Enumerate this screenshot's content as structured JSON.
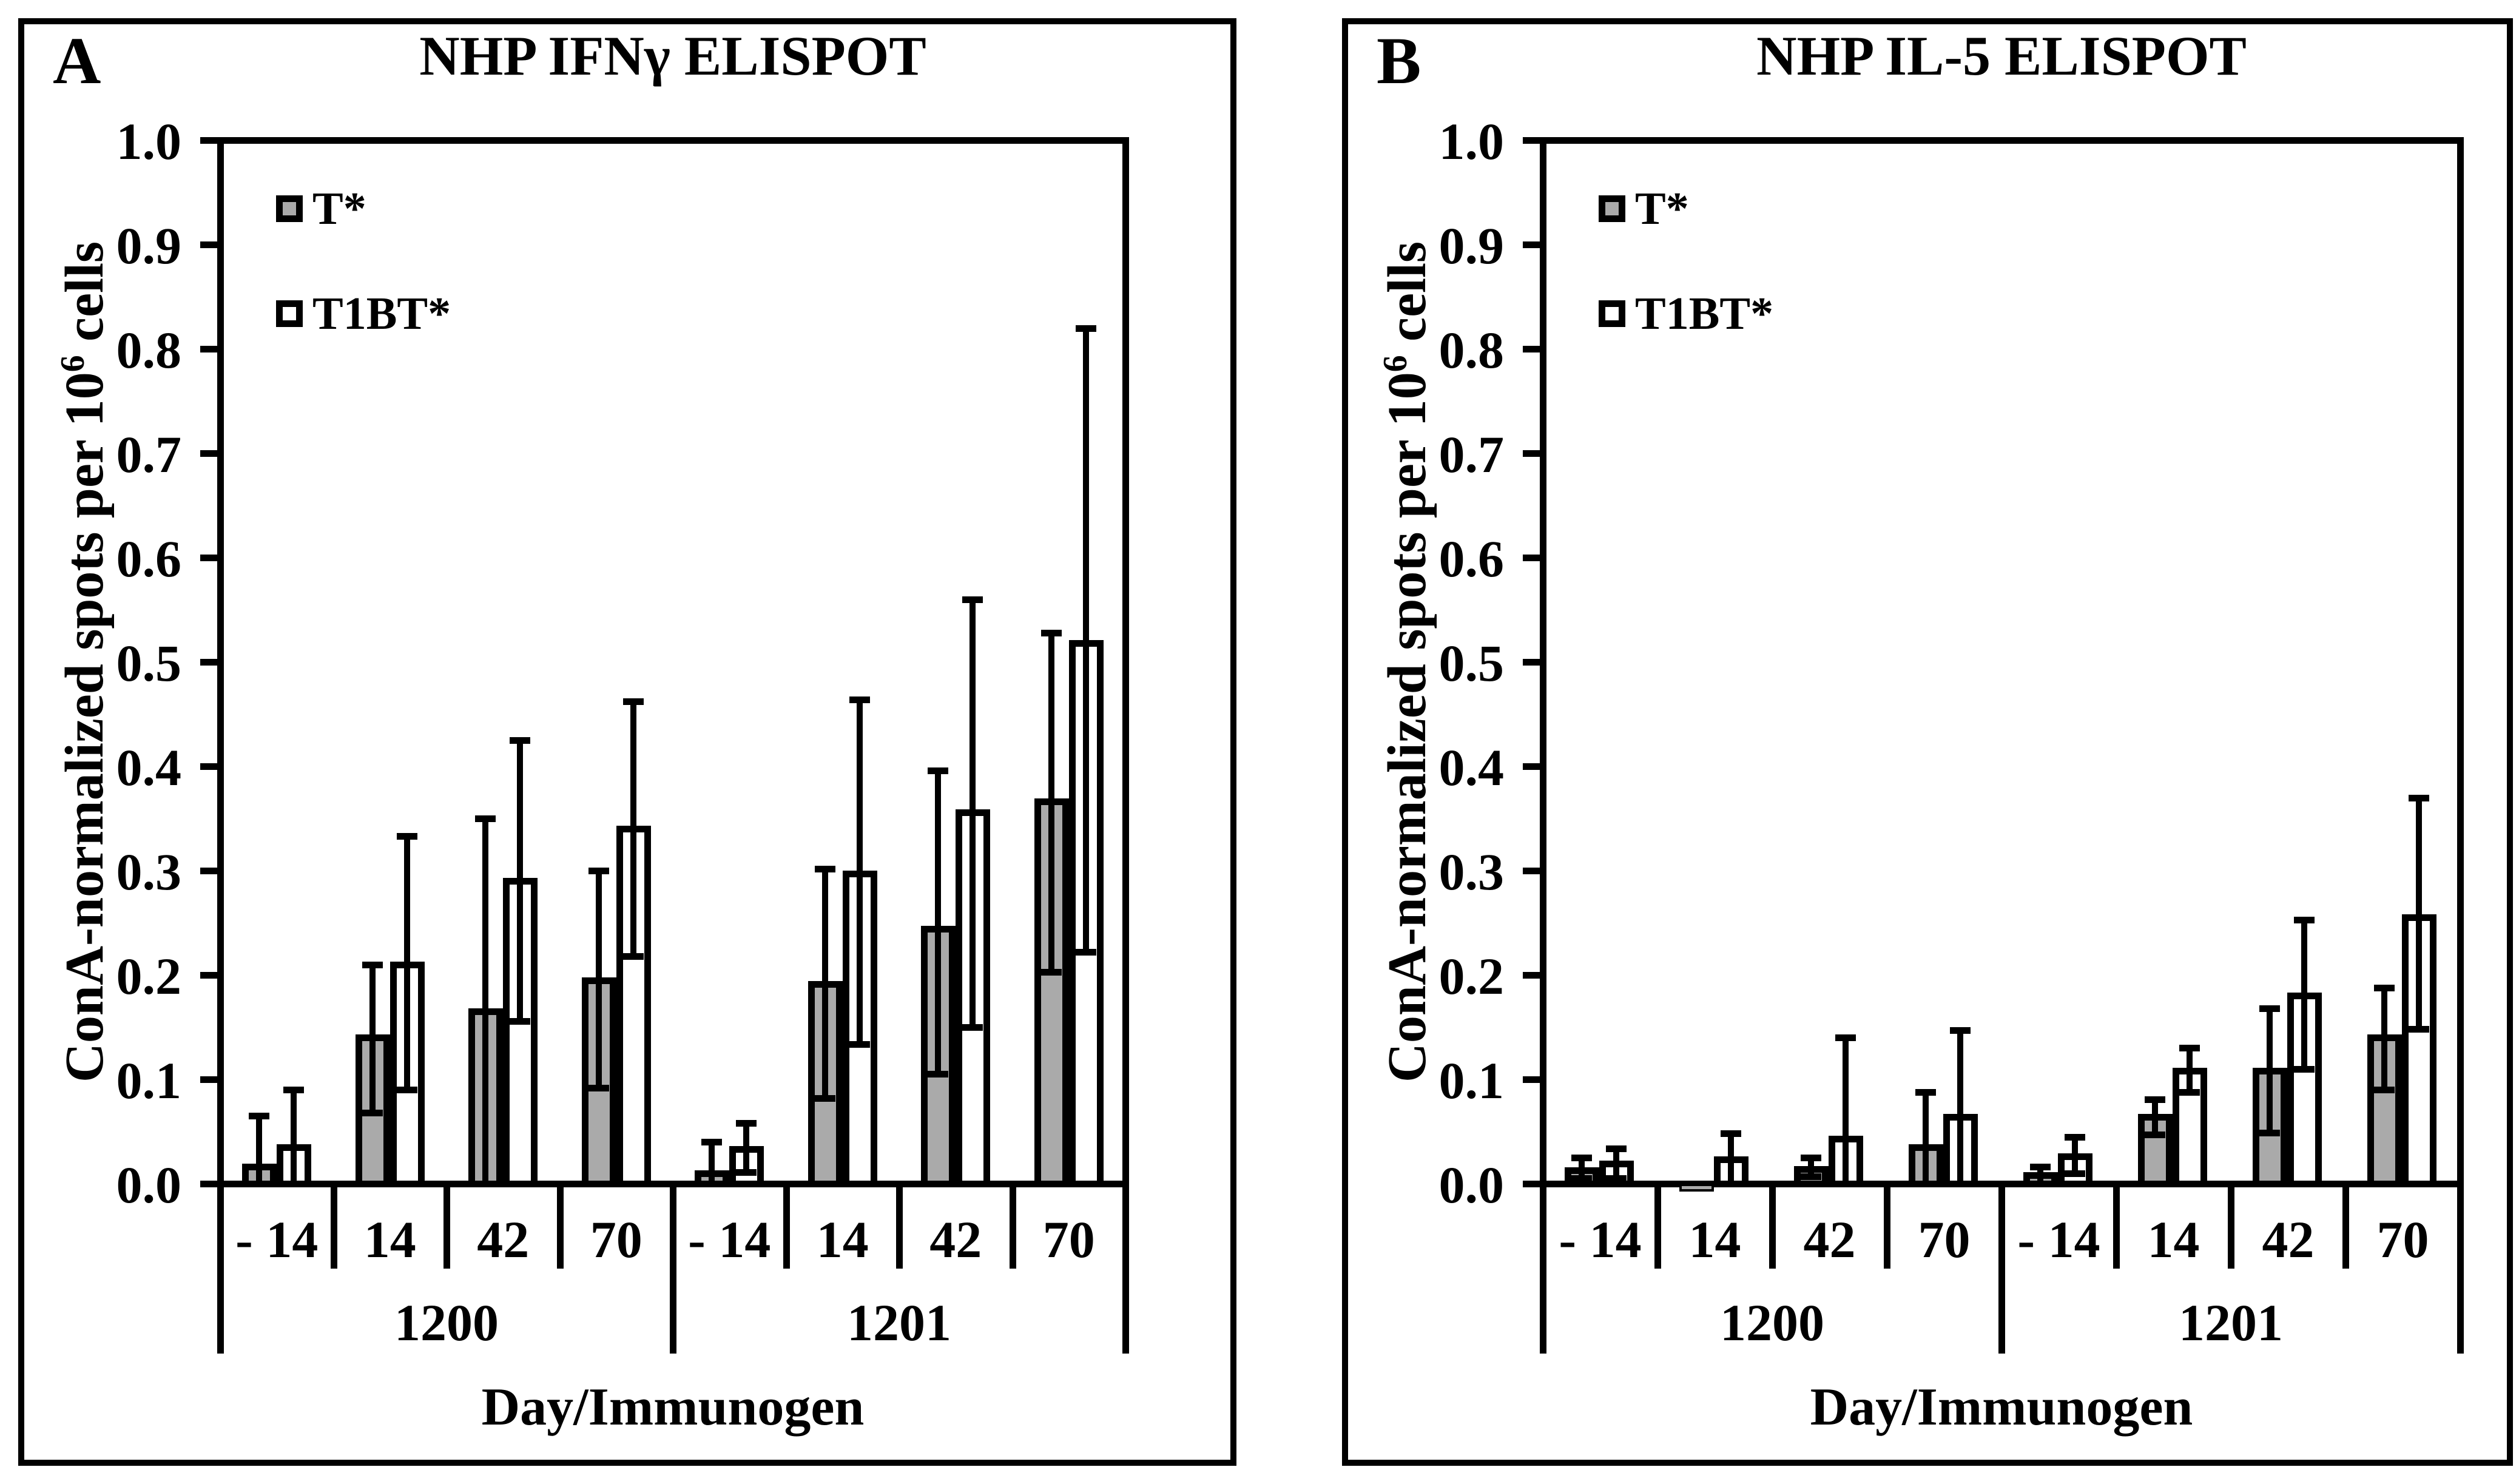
{
  "figure_background": "#ffffff",
  "colors": {
    "bar_gray": "#aaaaaa",
    "bar_white": "#ffffff",
    "ink": "#000000"
  },
  "chart_data": [
    {
      "type": "bar",
      "panel_label": "A",
      "title": "NHP IFNγ ELISPOT",
      "ylabel_main": "ConA-normalized spots per 10",
      "ylabel_sup": "6",
      "ylabel_tail": " cells",
      "xlabel": "Day/Immunogen",
      "ylim": [
        0,
        1.0
      ],
      "grid": "off",
      "legend_position": "top-left-inside",
      "yticks": [
        "1.0",
        "0.9",
        "0.8",
        "0.7",
        "0.6",
        "0.5",
        "0.4",
        "0.3",
        "0.2",
        "0.1",
        "0.0"
      ],
      "groups": [
        {
          "label": "1200",
          "days": [
            "- 14",
            "14",
            "42",
            "70"
          ]
        },
        {
          "label": "1201",
          "days": [
            "- 14",
            "14",
            "42",
            "70"
          ]
        }
      ],
      "series": [
        {
          "name": "T*",
          "fill": "#aaaaaa",
          "values": [
            [
              0.016,
              0.14,
              0.165,
              0.195
            ],
            [
              0.01,
              0.191,
              0.244,
              0.366
            ]
          ],
          "err_hi": [
            [
              0.065,
              0.21,
              0.35,
              0.3
            ],
            [
              0.04,
              0.302,
              0.396,
              0.528
            ]
          ],
          "err_lo": [
            [
              null,
              0.068,
              null,
              0.092
            ],
            [
              null,
              0.082,
              0.105,
              0.203
            ]
          ]
        },
        {
          "name": "T1BT*",
          "fill": "#ffffff",
          "values": [
            [
              0.035,
              0.21,
              0.29,
              0.34
            ],
            [
              0.033,
              0.297,
              0.356,
              0.518
            ]
          ],
          "err_hi": [
            [
              0.09,
              0.333,
              0.425,
              0.462
            ],
            [
              0.058,
              0.464,
              0.56,
              0.82
            ]
          ],
          "err_lo": [
            [
              null,
              0.09,
              0.156,
              0.218
            ],
            [
              0.011,
              0.134,
              0.15,
              0.222
            ]
          ]
        }
      ]
    },
    {
      "type": "bar",
      "panel_label": "B",
      "title": "NHP IL-5 ELISPOT",
      "ylabel_main": "ConA-normalized spots per 10",
      "ylabel_sup": "6",
      "ylabel_tail": " cells",
      "xlabel": "Day/Immunogen",
      "ylim": [
        0,
        1.0
      ],
      "grid": "off",
      "legend_position": "top-left-inside",
      "yticks": [
        "1.0",
        "0.9",
        "0.8",
        "0.7",
        "0.6",
        "0.5",
        "0.4",
        "0.3",
        "0.2",
        "0.1",
        "0.0"
      ],
      "groups": [
        {
          "label": "1200",
          "days": [
            "- 14",
            "14",
            "42",
            "70"
          ]
        },
        {
          "label": "1201",
          "days": [
            "- 14",
            "14",
            "42",
            "70"
          ]
        }
      ],
      "series": [
        {
          "name": "T*",
          "fill": "#aaaaaa",
          "values": [
            [
              0.013,
              -0.003,
              0.014,
              0.035
            ],
            [
              0.008,
              0.064,
              0.108,
              0.14
            ]
          ],
          "err_hi": [
            [
              0.025,
              null,
              0.025,
              0.088
            ],
            [
              0.016,
              0.081,
              0.168,
              0.188
            ]
          ],
          "err_lo": [
            [
              0.005,
              null,
              0.007,
              null
            ],
            [
              null,
              0.047,
              0.049,
              0.09
            ]
          ]
        },
        {
          "name": "T1BT*",
          "fill": "#ffffff",
          "values": [
            [
              0.019,
              0.023,
              0.043,
              0.064
            ],
            [
              0.026,
              0.108,
              0.18,
              0.255
            ]
          ],
          "err_hi": [
            [
              0.034,
              0.048,
              0.14,
              0.147
            ],
            [
              0.045,
              0.13,
              0.253,
              0.37
            ]
          ],
          "err_lo": [
            [
              0.005,
              null,
              null,
              null
            ],
            [
              0.01,
              0.088,
              0.11,
              0.148
            ]
          ]
        }
      ]
    }
  ]
}
